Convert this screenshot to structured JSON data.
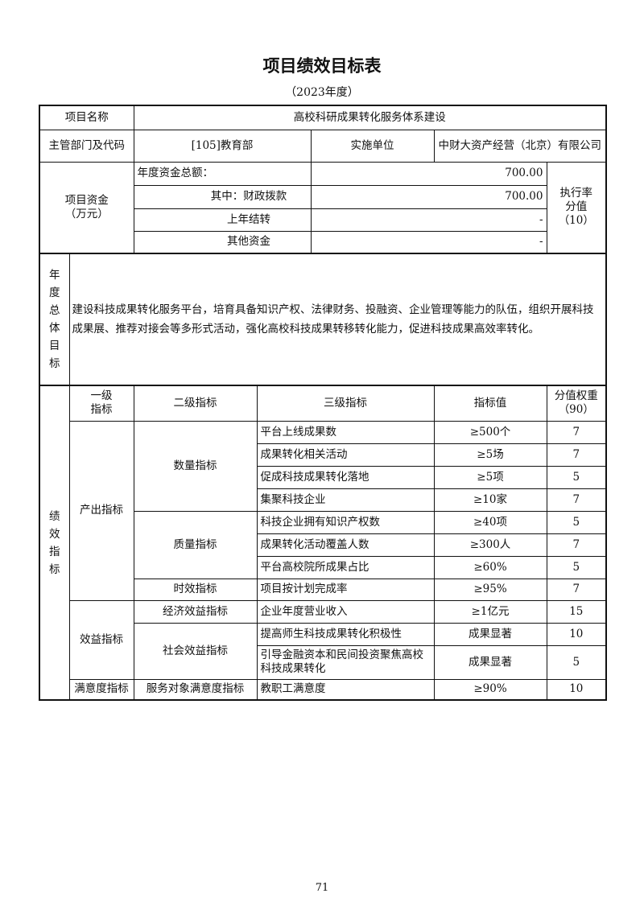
{
  "title": "项目绩效目标表",
  "subtitle": "（2023年度）",
  "project_name_label": "项目名称",
  "project_name": "高校科研成果转化服务体系建设",
  "dept_label": "主管部门及代码",
  "dept_value": "[105]教育部",
  "impl_label": "实施单位",
  "impl_value": "中财大资产经营（北京）有限公司",
  "funds": {
    "label": "项目资金（万元）",
    "label_line1": "项目资金",
    "label_line2": "（万元）",
    "rows": [
      {
        "label": "年度资金总额：",
        "value": "700.00"
      },
      {
        "label": "其中：财政拨款",
        "value": "700.00"
      },
      {
        "label": "上年结转",
        "value": "-"
      },
      {
        "label": "其他资金",
        "value": "-"
      }
    ],
    "exec_label_line1": "执行率",
    "exec_label_line2": "分值",
    "exec_label_line3": "（10）"
  },
  "goal": {
    "label": "年度总体目标",
    "chars": [
      "年",
      "度",
      "总",
      "体",
      "目",
      "标"
    ],
    "text": "建设科技成果转化服务平台，培育具备知识产权、法律财务、投融资、企业管理等能力的队伍，组织开展科技成果展、推荐对接会等多形式活动，强化高校科技成果转移转化能力，促进科技成果高效率转化。"
  },
  "indicators": {
    "label_chars": [
      "绩",
      "效",
      "指",
      "标"
    ],
    "headers": {
      "level1_line1": "一级",
      "level1_line2": "指标",
      "level2": "二级指标",
      "level3": "三级指标",
      "value": "指标值",
      "weight_line1": "分值权重",
      "weight_line2": "（90）"
    },
    "level1": [
      "产出指标",
      "效益指标",
      "满意度指标"
    ],
    "level2": [
      "数量指标",
      "质量指标",
      "时效指标",
      "经济效益指标",
      "社会效益指标",
      "服务对象满意度指标"
    ],
    "rows": [
      {
        "name": "平台上线成果数",
        "value": "≥500个",
        "weight": "7"
      },
      {
        "name": "成果转化相关活动",
        "value": "≥5场",
        "weight": "7"
      },
      {
        "name": "促成科技成果转化落地",
        "value": "≥5项",
        "weight": "5"
      },
      {
        "name": "集聚科技企业",
        "value": "≥10家",
        "weight": "7"
      },
      {
        "name": "科技企业拥有知识产权数",
        "value": "≥40项",
        "weight": "5"
      },
      {
        "name": "成果转化活动覆盖人数",
        "value": "≥300人",
        "weight": "7"
      },
      {
        "name": "平台高校院所成果占比",
        "value": "≥60%",
        "weight": "5"
      },
      {
        "name": "项目按计划完成率",
        "value": "≥95%",
        "weight": "7"
      },
      {
        "name": "企业年度营业收入",
        "value": "≥1亿元",
        "weight": "15"
      },
      {
        "name": "提高师生科技成果转化积极性",
        "value": "成果显著",
        "weight": "10"
      },
      {
        "name": "引导金融资本和民间投资聚焦高校科技成果转化",
        "value": "成果显著",
        "weight": "5"
      },
      {
        "name": "教职工满意度",
        "value": "≥90%",
        "weight": "10"
      }
    ]
  },
  "page_number": "71"
}
